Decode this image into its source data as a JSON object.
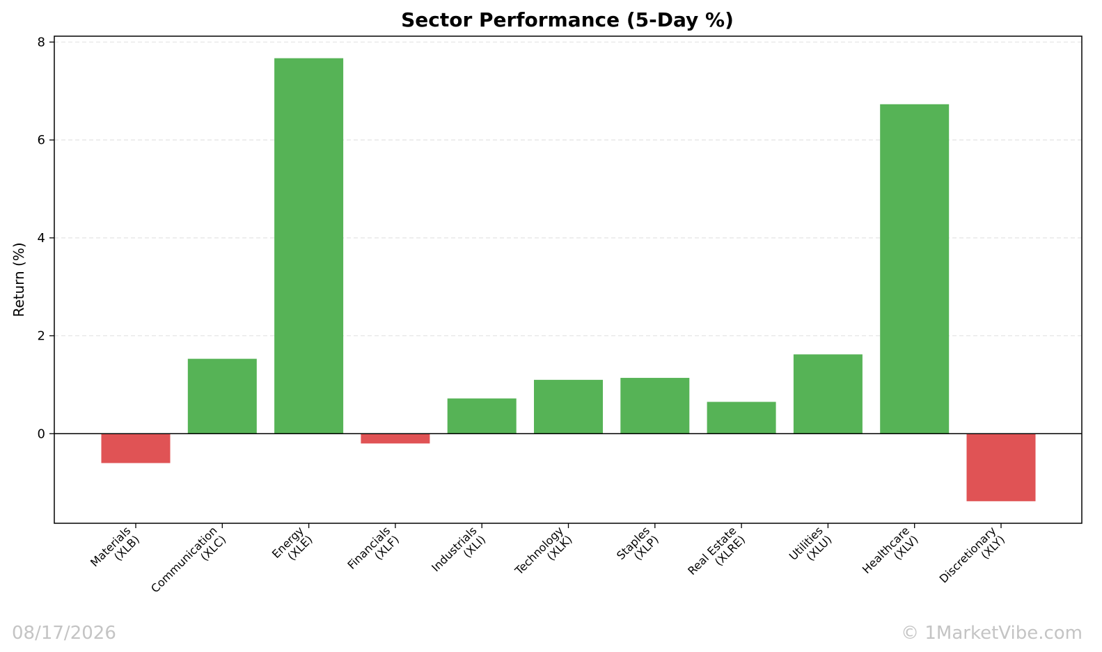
{
  "chart_data": {
    "type": "bar",
    "title": "Sector Performance (5-Day %)",
    "xlabel": "",
    "ylabel": "Return (%)",
    "ylim": [
      -1.83,
      8.12
    ],
    "yticks": [
      0,
      2,
      4,
      6,
      8
    ],
    "grid": "horizontal-dashed",
    "categories": [
      [
        "Materials",
        "(XLB)"
      ],
      [
        "Communication",
        "(XLC)"
      ],
      [
        "Energy",
        "(XLE)"
      ],
      [
        "Financials",
        "(XLF)"
      ],
      [
        "Industrials",
        "(XLI)"
      ],
      [
        "Technology",
        "(XLK)"
      ],
      [
        "Staples",
        "(XLP)"
      ],
      [
        "Real Estate",
        "(XLRE)"
      ],
      [
        "Utilities",
        "(XLU)"
      ],
      [
        "Healthcare",
        "(XLV)"
      ],
      [
        "Discretionary",
        "(XLY)"
      ]
    ],
    "values": [
      -0.6,
      1.53,
      7.67,
      -0.2,
      0.72,
      1.1,
      1.14,
      0.65,
      1.62,
      6.73,
      -1.38
    ],
    "colors": {
      "positive": "#56b356",
      "negative": "#e05355"
    }
  },
  "footer": {
    "date": "08/17/2026",
    "credit": "© 1MarketVibe.com"
  }
}
